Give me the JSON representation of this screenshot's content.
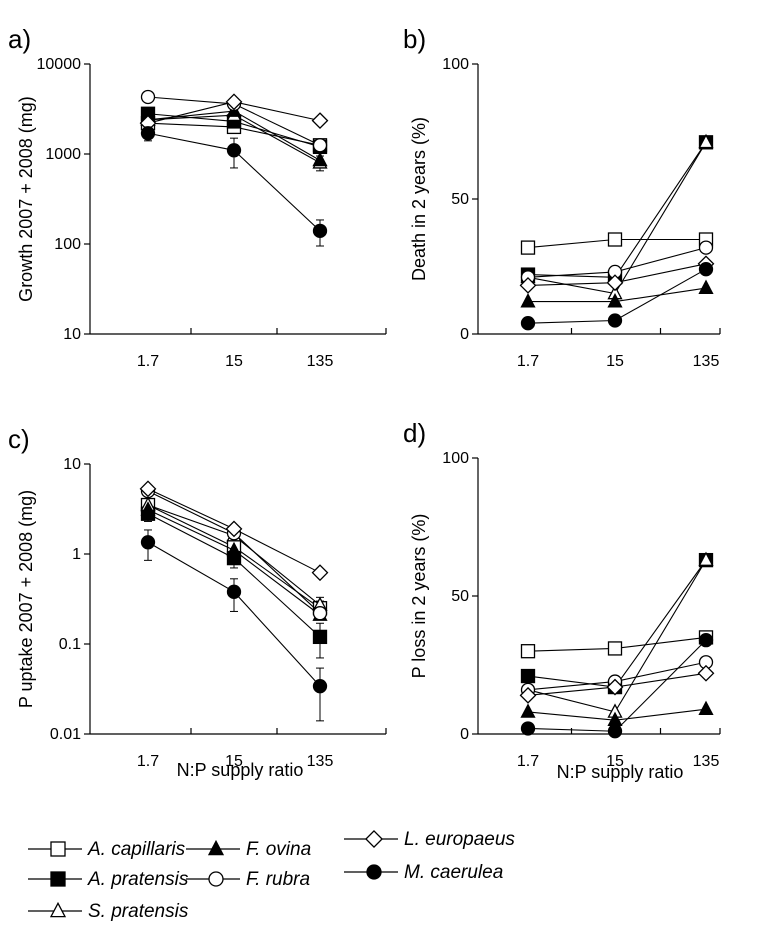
{
  "chart_data": [
    {
      "panel": "a)",
      "type": "line",
      "ylabel": "Growth 2007 + 2008 (mg)",
      "xlabel": "",
      "categories": [
        "1.7",
        "15",
        "135"
      ],
      "yscale": "log",
      "ylim": [
        10,
        10000
      ],
      "yticks": [
        "10",
        "100",
        "1000",
        "10000"
      ],
      "series": [
        {
          "name": "A. capillaris",
          "values": [
            2200,
            2000,
            1250
          ],
          "err": [
            0,
            250,
            0
          ]
        },
        {
          "name": "A. pratensis",
          "values": [
            2800,
            2300,
            1200
          ],
          "err": [
            350,
            300,
            0
          ]
        },
        {
          "name": "S. pratensis",
          "values": [
            2400,
            2700,
            800
          ],
          "err": [
            0,
            0,
            150
          ]
        },
        {
          "name": "F. ovina",
          "values": [
            2400,
            3000,
            850
          ],
          "err": [
            0,
            0,
            0
          ]
        },
        {
          "name": "F. rubra",
          "values": [
            4300,
            3600,
            1250
          ],
          "err": [
            0,
            0,
            0
          ]
        },
        {
          "name": "L. europaeus",
          "values": [
            2200,
            3800,
            2350
          ],
          "err": [
            0,
            0,
            0
          ]
        },
        {
          "name": "M. caerulea",
          "values": [
            1700,
            1100,
            140
          ],
          "err": [
            300,
            400,
            45
          ]
        }
      ]
    },
    {
      "panel": "b)",
      "type": "line",
      "ylabel": "Death in 2 years (%)",
      "xlabel": "",
      "categories": [
        "1.7",
        "15",
        "135"
      ],
      "yscale": "linear",
      "ylim": [
        0,
        100
      ],
      "yticks": [
        "0",
        "50",
        "100"
      ],
      "series": [
        {
          "name": "A. capillaris",
          "values": [
            32,
            35,
            35
          ],
          "err": [
            0,
            0,
            0
          ]
        },
        {
          "name": "A. pratensis",
          "values": [
            22,
            21,
            71
          ],
          "err": [
            0,
            0,
            0
          ]
        },
        {
          "name": "S. pratensis",
          "values": [
            21,
            15,
            71
          ],
          "err": [
            0,
            0,
            0
          ]
        },
        {
          "name": "F. ovina",
          "values": [
            12,
            12,
            17
          ],
          "err": [
            0,
            0,
            0
          ]
        },
        {
          "name": "F. rubra",
          "values": [
            21,
            23,
            32
          ],
          "err": [
            0,
            0,
            0
          ]
        },
        {
          "name": "L. europaeus",
          "values": [
            18,
            19,
            26
          ],
          "err": [
            0,
            0,
            0
          ]
        },
        {
          "name": "M. caerulea",
          "values": [
            4,
            5,
            24
          ],
          "err": [
            0,
            0,
            0
          ]
        }
      ]
    },
    {
      "panel": "c)",
      "type": "line",
      "ylabel": "P uptake 2007 + 2008 (mg)",
      "xlabel": "N:P supply ratio",
      "categories": [
        "1.7",
        "15",
        "135"
      ],
      "yscale": "log",
      "ylim": [
        0.01,
        10
      ],
      "yticks": [
        "0.01",
        "0.1",
        "1",
        "10"
      ],
      "series": [
        {
          "name": "A. capillaris",
          "values": [
            3.5,
            1.2,
            0.25
          ],
          "err": [
            0,
            0.2,
            0.05
          ]
        },
        {
          "name": "A. pratensis",
          "values": [
            2.8,
            0.9,
            0.12
          ],
          "err": [
            0.5,
            0.2,
            0.05
          ]
        },
        {
          "name": "S. pratensis",
          "values": [
            3.5,
            1.6,
            0.27
          ],
          "err": [
            0,
            0,
            0.06
          ]
        },
        {
          "name": "F. ovina",
          "values": [
            3.1,
            1.1,
            0.21
          ],
          "err": [
            0,
            0,
            0
          ]
        },
        {
          "name": "F. rubra",
          "values": [
            5.0,
            1.7,
            0.22
          ],
          "err": [
            0,
            0,
            0
          ]
        },
        {
          "name": "L. europaeus",
          "values": [
            5.3,
            1.9,
            0.62
          ],
          "err": [
            0,
            0,
            0
          ]
        },
        {
          "name": "M. caerulea",
          "values": [
            1.35,
            0.38,
            0.034
          ],
          "err": [
            0.5,
            0.15,
            0.02
          ]
        }
      ]
    },
    {
      "panel": "d)",
      "type": "line",
      "ylabel": "P loss in 2 years (%)",
      "xlabel": "N:P supply ratio",
      "categories": [
        "1.7",
        "15",
        "135"
      ],
      "yscale": "linear",
      "ylim": [
        0,
        100
      ],
      "yticks": [
        "0",
        "50",
        "100"
      ],
      "series": [
        {
          "name": "A. capillaris",
          "values": [
            30,
            31,
            35
          ],
          "err": [
            0,
            0,
            0
          ]
        },
        {
          "name": "A. pratensis",
          "values": [
            21,
            17,
            63
          ],
          "err": [
            0,
            0,
            0
          ]
        },
        {
          "name": "S. pratensis",
          "values": [
            16,
            8,
            63
          ],
          "err": [
            0,
            0,
            0
          ]
        },
        {
          "name": "F. ovina",
          "values": [
            8,
            5,
            9
          ],
          "err": [
            0,
            0,
            0
          ]
        },
        {
          "name": "F. rubra",
          "values": [
            16,
            19,
            26
          ],
          "err": [
            0,
            0,
            0
          ]
        },
        {
          "name": "L. europaeus",
          "values": [
            14,
            17,
            22
          ],
          "err": [
            0,
            0,
            0
          ]
        },
        {
          "name": "M. caerulea",
          "values": [
            2,
            1,
            34
          ],
          "err": [
            0,
            0,
            0
          ]
        }
      ]
    }
  ],
  "legend": {
    "placement": "bottom",
    "entries": [
      {
        "name": "A. capillaris",
        "marker": "square-open"
      },
      {
        "name": "F. ovina",
        "marker": "triangle-filled"
      },
      {
        "name": "L. europaeus",
        "marker": "diamond-open"
      },
      {
        "name": "A. pratensis",
        "marker": "square-filled"
      },
      {
        "name": "F. rubra",
        "marker": "circle-open"
      },
      {
        "name": "M. caerulea",
        "marker": "circle-filled"
      },
      {
        "name": "S. pratensis",
        "marker": "triangle-open"
      }
    ]
  }
}
